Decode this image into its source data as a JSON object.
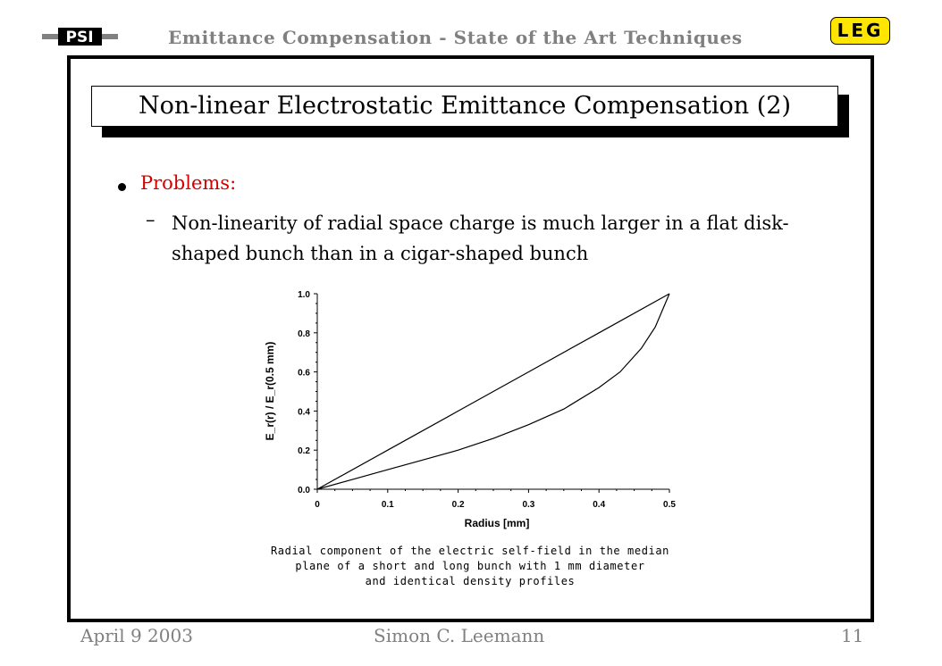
{
  "header": {
    "logo_text": "PSI",
    "title": "Emittance Compensation - State of the Art Techniques",
    "badge": "LEG"
  },
  "slide": {
    "title": "Non-linear Electrostatic Emittance Compensation (2)",
    "bullet": "Problems:",
    "subbullet": "Non-linearity of radial space charge is much larger in a flat disk-shaped bunch than in a cigar-shaped bunch",
    "caption_lines": [
      "Radial component of the electric self-field in the median",
      "plane of a short and long bunch with 1 mm diameter",
      "and identical density profiles"
    ]
  },
  "footer": {
    "date": "April 9 2003",
    "author": "Simon C. Leemann",
    "page": "11"
  },
  "colors": {
    "bullet_red": "#d40000",
    "header_gray": "#808080",
    "badge_yellow": "#ffe600"
  },
  "chart_data": {
    "type": "line",
    "xlabel": "Radius [mm]",
    "ylabel": "E_r(r) / E_r(0.5 mm)",
    "xlim": [
      0,
      0.5
    ],
    "ylim": [
      0,
      1.0
    ],
    "xticks": [
      "0",
      "0.1",
      "0.2",
      "0.3",
      "0.4",
      "0.5"
    ],
    "yticks": [
      "0.0",
      "0.2",
      "0.4",
      "0.6",
      "0.8",
      "1.0"
    ],
    "grid": false,
    "series": [
      {
        "x": [
          0,
          0.1,
          0.2,
          0.3,
          0.4,
          0.5
        ],
        "y": [
          0,
          0.2,
          0.4,
          0.6,
          0.8,
          1.0
        ]
      },
      {
        "x": [
          0,
          0.05,
          0.1,
          0.15,
          0.2,
          0.25,
          0.3,
          0.35,
          0.4,
          0.43,
          0.46,
          0.48,
          0.5
        ],
        "y": [
          0,
          0.05,
          0.1,
          0.15,
          0.2,
          0.26,
          0.33,
          0.41,
          0.52,
          0.6,
          0.72,
          0.83,
          1.0
        ]
      }
    ]
  }
}
